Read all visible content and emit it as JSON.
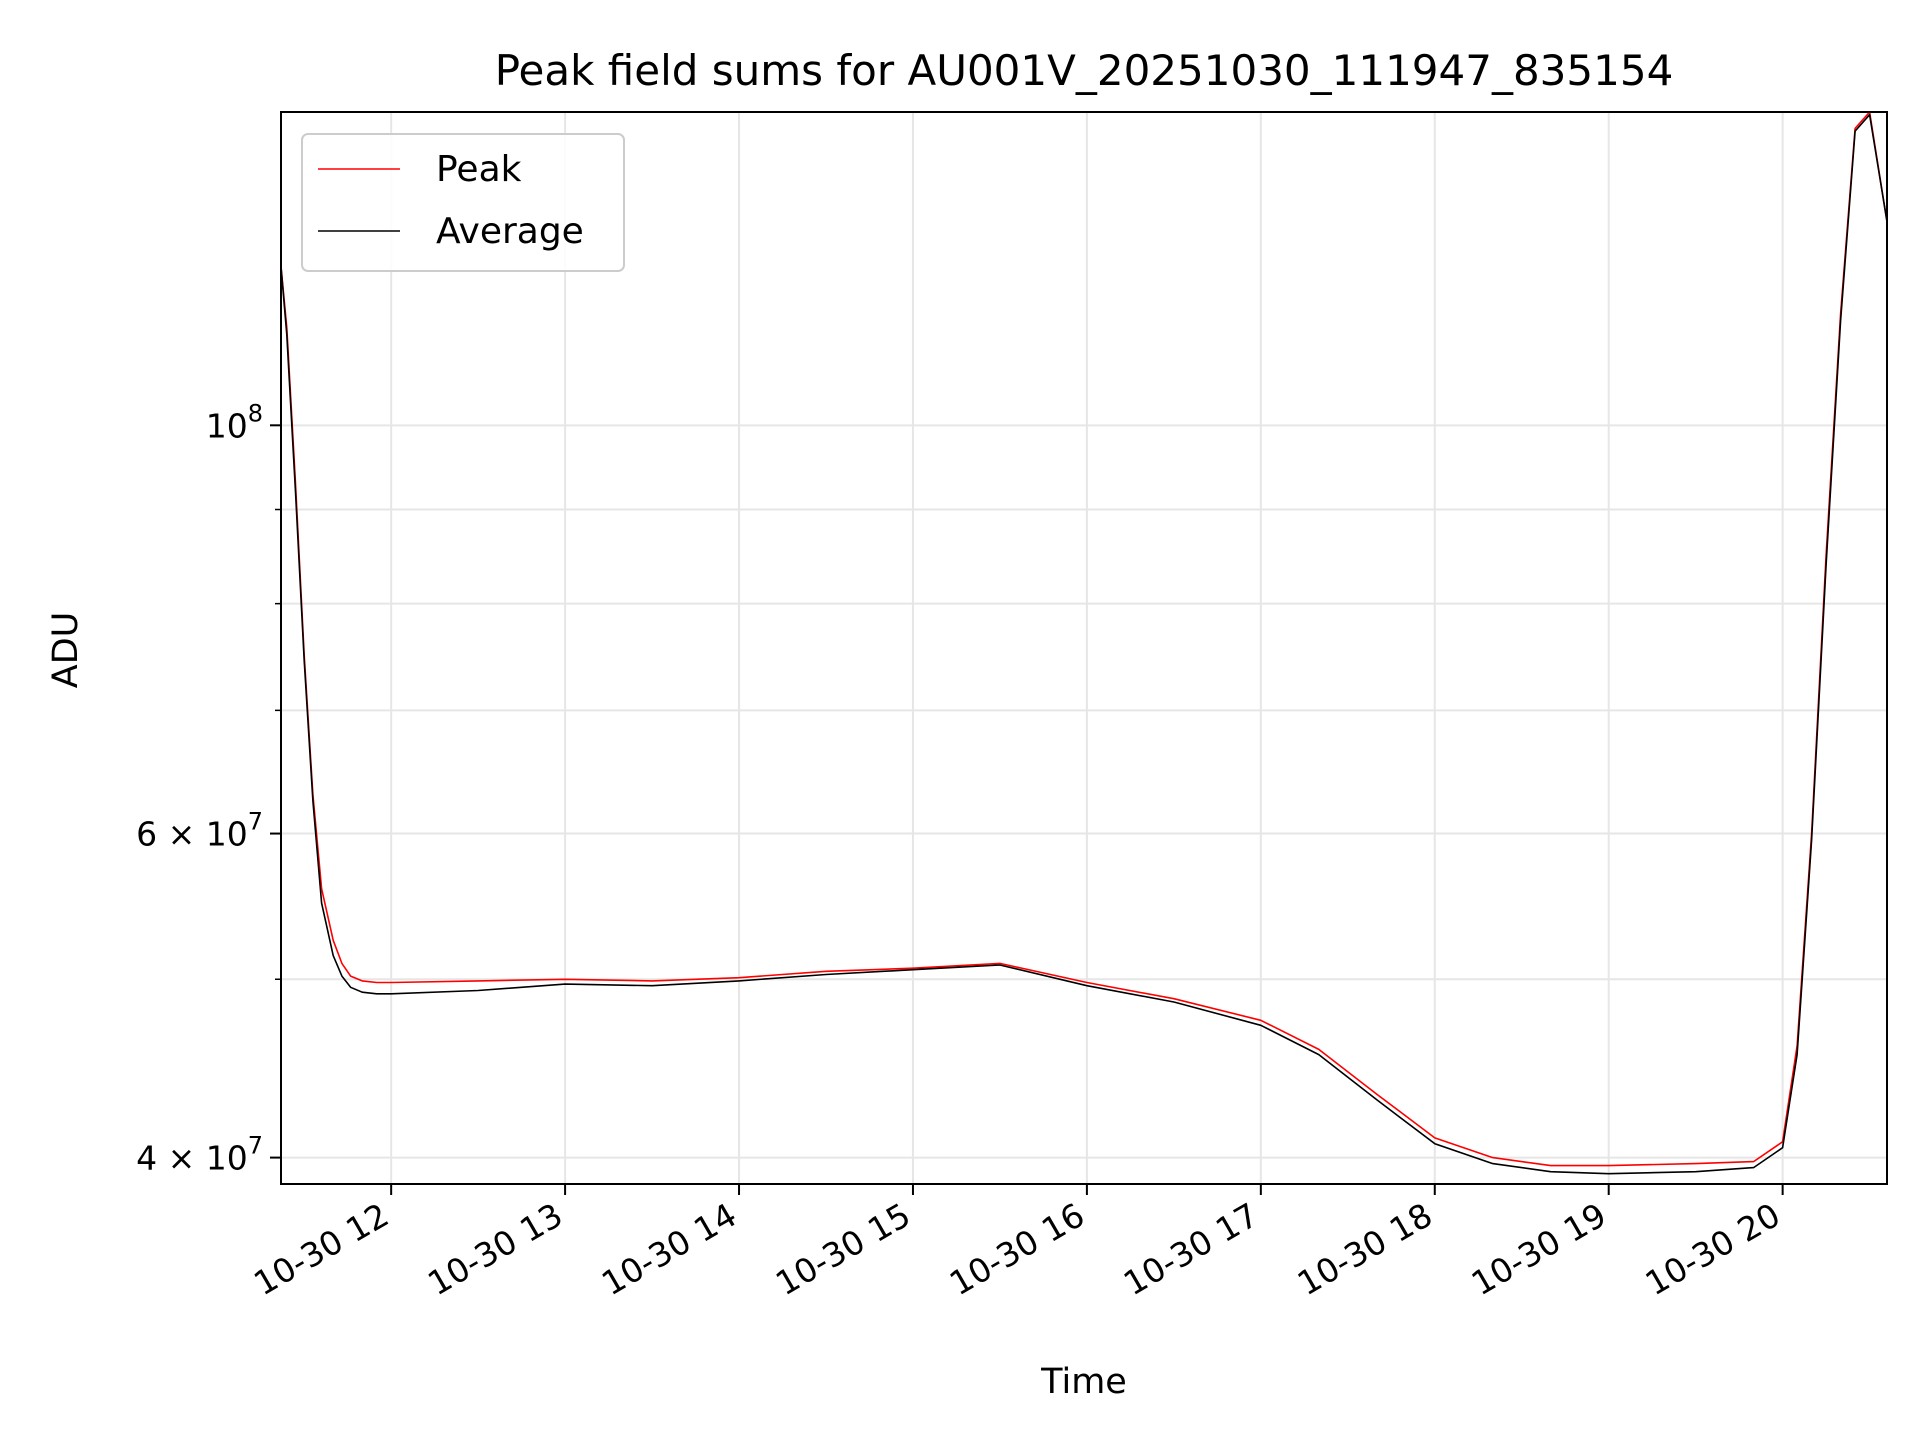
{
  "chart_data": {
    "type": "line",
    "title": "Peak field sums for AU001V_20251030_111947_835154",
    "xlabel": "Time",
    "ylabel": "ADU",
    "y_scale": "log",
    "grid": true,
    "legend_position": "top-left",
    "xlim": [
      "2025-10-30 11:22",
      "2025-10-30 20:36"
    ],
    "ylim": [
      38700000,
      148000000
    ],
    "x_ticks": [
      "10-30 12",
      "10-30 13",
      "10-30 14",
      "10-30 15",
      "10-30 16",
      "10-30 17",
      "10-30 18",
      "10-30 19",
      "10-30 20"
    ],
    "x_tick_values": [
      "2025-10-30 12:00",
      "2025-10-30 13:00",
      "2025-10-30 14:00",
      "2025-10-30 15:00",
      "2025-10-30 16:00",
      "2025-10-30 17:00",
      "2025-10-30 18:00",
      "2025-10-30 19:00",
      "2025-10-30 20:00"
    ],
    "y_ticks": [
      {
        "value": 100000000,
        "mantissa": "",
        "base": "10",
        "exp": "8"
      },
      {
        "value": 60000000,
        "mantissa": "6 × ",
        "base": "10",
        "exp": "7"
      },
      {
        "value": 40000000,
        "mantissa": "4 × ",
        "base": "10",
        "exp": "7"
      }
    ],
    "y_minor_ticks": [
      50000000,
      70000000,
      80000000,
      90000000
    ],
    "series": [
      {
        "name": "Peak",
        "color": "#ff0000",
        "x": [
          "2025-10-30 11:22",
          "2025-10-30 11:24",
          "2025-10-30 11:27",
          "2025-10-30 11:30",
          "2025-10-30 11:33",
          "2025-10-30 11:36",
          "2025-10-30 11:40",
          "2025-10-30 11:43",
          "2025-10-30 11:46",
          "2025-10-30 11:50",
          "2025-10-30 11:55",
          "2025-10-30 12:00",
          "2025-10-30 12:30",
          "2025-10-30 13:00",
          "2025-10-30 13:30",
          "2025-10-30 14:00",
          "2025-10-30 14:30",
          "2025-10-30 15:00",
          "2025-10-30 15:30",
          "2025-10-30 16:00",
          "2025-10-30 16:30",
          "2025-10-30 17:00",
          "2025-10-30 17:20",
          "2025-10-30 17:40",
          "2025-10-30 18:00",
          "2025-10-30 18:20",
          "2025-10-30 18:40",
          "2025-10-30 19:00",
          "2025-10-30 19:30",
          "2025-10-30 19:50",
          "2025-10-30 20:00",
          "2025-10-30 20:05",
          "2025-10-30 20:10",
          "2025-10-30 20:15",
          "2025-10-30 20:20",
          "2025-10-30 20:25",
          "2025-10-30 20:30",
          "2025-10-30 20:36"
        ],
        "values": [
          122000000,
          113000000,
          93000000,
          75000000,
          63000000,
          56000000,
          52500000,
          51000000,
          50200000,
          49900000,
          49800000,
          49800000,
          49900000,
          50000000,
          49900000,
          50100000,
          50500000,
          50700000,
          51000000,
          49800000,
          48800000,
          47500000,
          45800000,
          43300000,
          41000000,
          40000000,
          39600000,
          39600000,
          39700000,
          39800000,
          40800000,
          46000000,
          60000000,
          85000000,
          115000000,
          145000000,
          148000000,
          129000000
        ]
      },
      {
        "name": "Average",
        "color": "#000000",
        "x": [
          "2025-10-30 11:22",
          "2025-10-30 11:24",
          "2025-10-30 11:27",
          "2025-10-30 11:30",
          "2025-10-30 11:33",
          "2025-10-30 11:36",
          "2025-10-30 11:40",
          "2025-10-30 11:43",
          "2025-10-30 11:46",
          "2025-10-30 11:50",
          "2025-10-30 11:55",
          "2025-10-30 12:00",
          "2025-10-30 12:30",
          "2025-10-30 13:00",
          "2025-10-30 13:30",
          "2025-10-30 14:00",
          "2025-10-30 14:30",
          "2025-10-30 15:00",
          "2025-10-30 15:30",
          "2025-10-30 16:00",
          "2025-10-30 16:30",
          "2025-10-30 17:00",
          "2025-10-30 17:20",
          "2025-10-30 17:40",
          "2025-10-30 18:00",
          "2025-10-30 18:20",
          "2025-10-30 18:40",
          "2025-10-30 19:00",
          "2025-10-30 19:30",
          "2025-10-30 19:50",
          "2025-10-30 20:00",
          "2025-10-30 20:05",
          "2025-10-30 20:10",
          "2025-10-30 20:15",
          "2025-10-30 20:20",
          "2025-10-30 20:25",
          "2025-10-30 20:30",
          "2025-10-30 20:36"
        ],
        "values": [
          122000000,
          112000000,
          92000000,
          74500000,
          62500000,
          55000000,
          51500000,
          50200000,
          49500000,
          49200000,
          49100000,
          49100000,
          49300000,
          49700000,
          49600000,
          49900000,
          50300000,
          50600000,
          50900000,
          49600000,
          48600000,
          47200000,
          45500000,
          43000000,
          40700000,
          39700000,
          39300000,
          39200000,
          39300000,
          39500000,
          40500000,
          45500000,
          59500000,
          84000000,
          114000000,
          144500000,
          147500000,
          129000000
        ]
      }
    ]
  }
}
